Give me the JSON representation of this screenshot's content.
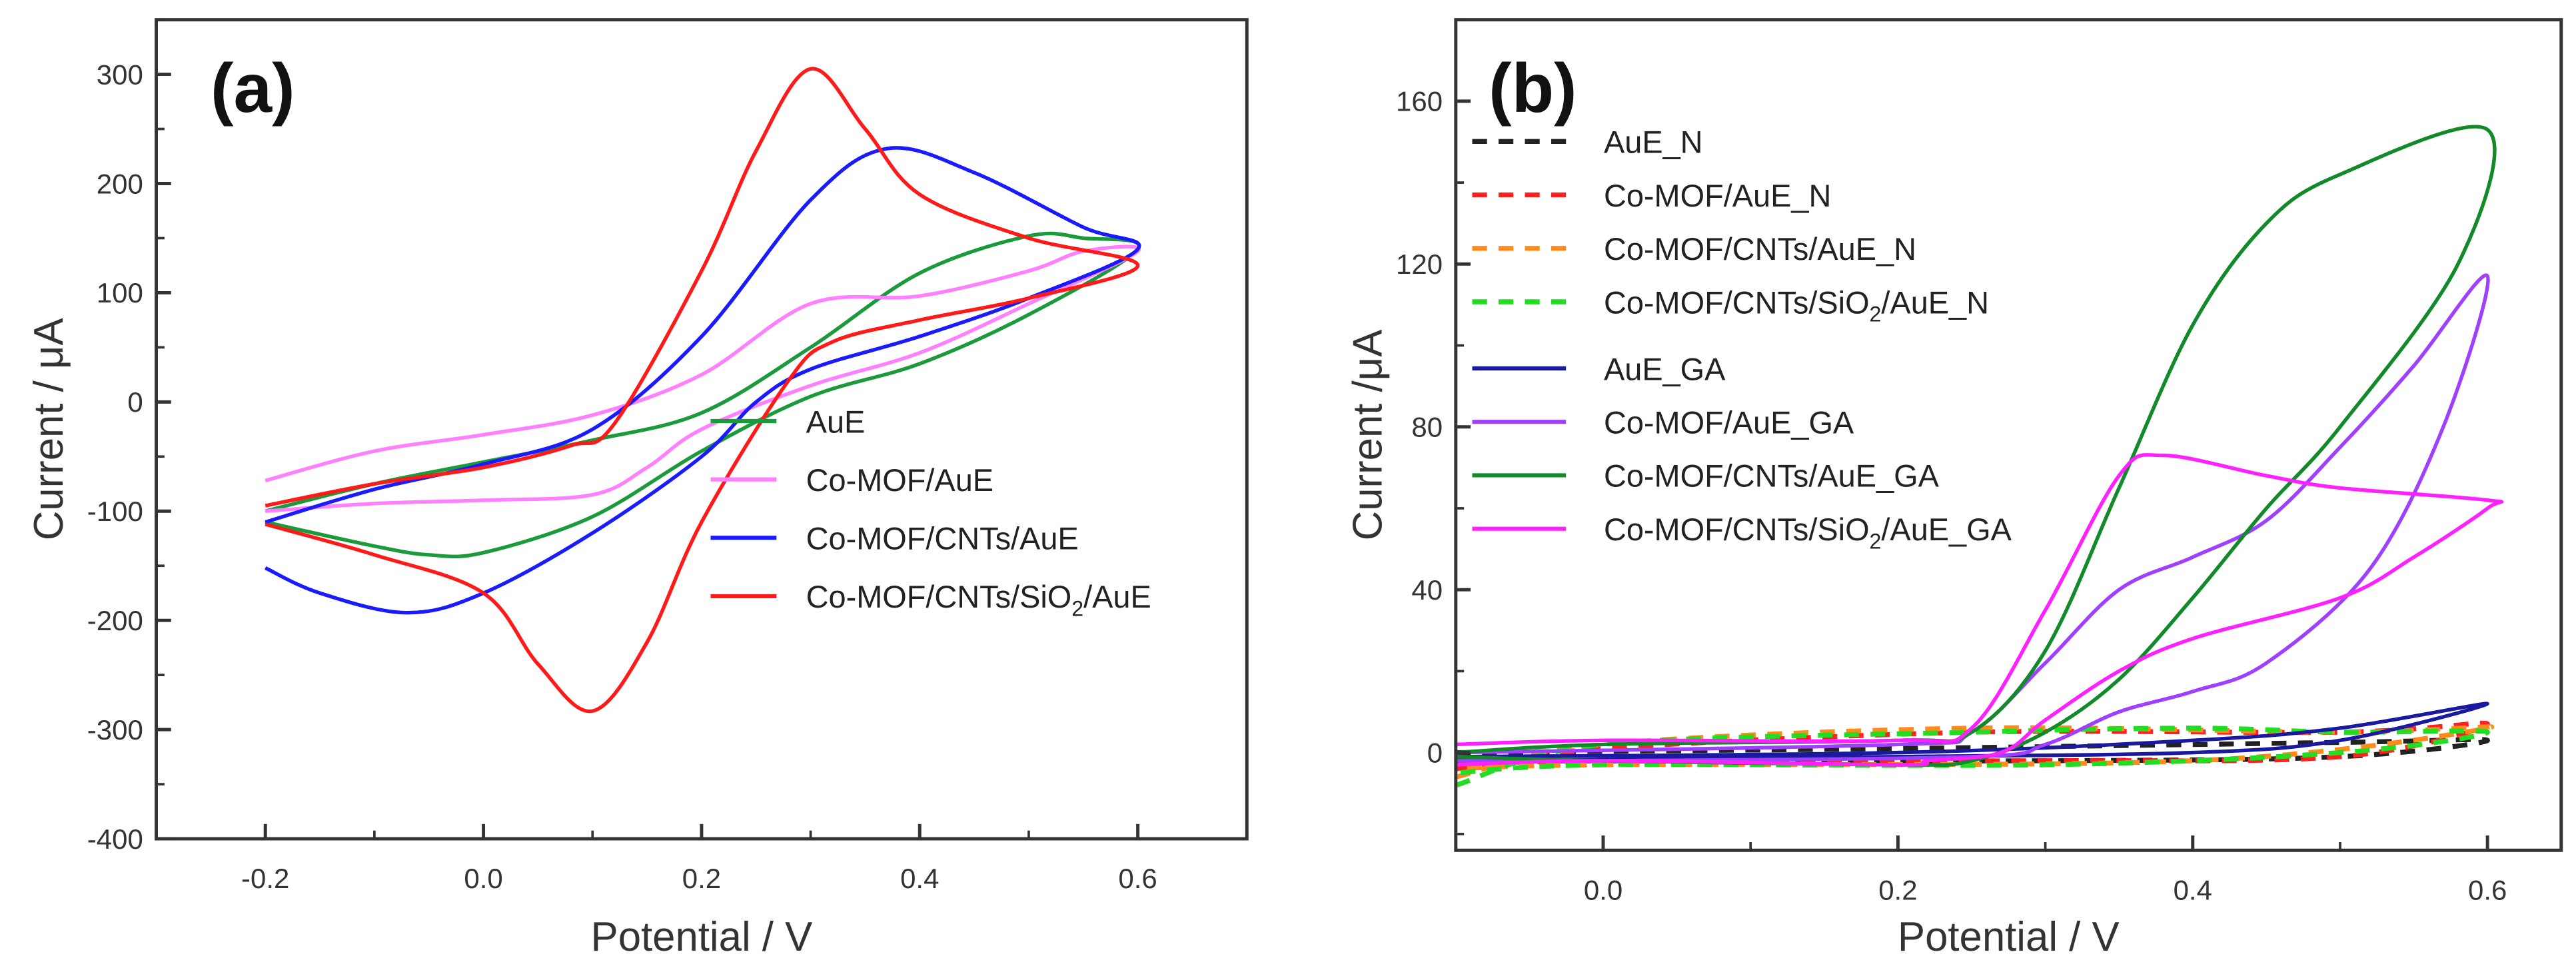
{
  "chart_data": [
    {
      "type": "line",
      "panel_label": "(a)",
      "xlabel": "Potential / V",
      "ylabel": "Current / μA",
      "xlim": [
        -0.3,
        0.7
      ],
      "ylim": [
        -400,
        350
      ],
      "xticks": [
        -0.2,
        0.0,
        0.2,
        0.4,
        0.6
      ],
      "xtick_labels": [
        "-0.2",
        "0.0",
        "0.2",
        "0.4",
        "0.6"
      ],
      "yticks": [
        300,
        200,
        100,
        0,
        -100,
        -200,
        -300,
        -400
      ],
      "ytick_labels": [
        "300",
        "200",
        "100",
        "0",
        "-100",
        "-200",
        "-300",
        "-400"
      ],
      "legend_position": "bottom-right",
      "series": [
        {
          "name": "AuE",
          "sub": "",
          "color": "#1a9a3a",
          "dash": false,
          "points": [
            [
              -0.2,
              -100
            ],
            [
              -0.1,
              -75
            ],
            [
              0,
              -55
            ],
            [
              0.1,
              -35
            ],
            [
              0.2,
              -10
            ],
            [
              0.3,
              50
            ],
            [
              0.4,
              118
            ],
            [
              0.5,
              152
            ],
            [
              0.55,
              150
            ],
            [
              0.6,
              140
            ],
            [
              0.5,
              80
            ],
            [
              0.4,
              35
            ],
            [
              0.3,
              5
            ],
            [
              0.2,
              -45
            ],
            [
              0.1,
              -105
            ],
            [
              0.0,
              -138
            ],
            [
              -0.05,
              -140
            ],
            [
              -0.1,
              -132
            ],
            [
              -0.2,
              -110
            ]
          ]
        },
        {
          "name": "Co-MOF/AuE",
          "sub": "",
          "color": "#ff80ff",
          "dash": false,
          "points": [
            [
              -0.2,
              -72
            ],
            [
              -0.1,
              -45
            ],
            [
              0,
              -30
            ],
            [
              0.1,
              -12
            ],
            [
              0.2,
              25
            ],
            [
              0.3,
              90
            ],
            [
              0.4,
              97
            ],
            [
              0.5,
              120
            ],
            [
              0.55,
              138
            ],
            [
              0.6,
              138
            ],
            [
              0.5,
              90
            ],
            [
              0.4,
              45
            ],
            [
              0.3,
              15
            ],
            [
              0.2,
              -25
            ],
            [
              0.15,
              -60
            ],
            [
              0.1,
              -85
            ],
            [
              0.0,
              -90
            ],
            [
              -0.1,
              -93
            ],
            [
              -0.2,
              -100
            ]
          ]
        },
        {
          "name": "Co-MOF/CNTs/AuE",
          "sub": "",
          "color": "#1a1aff",
          "dash": false,
          "points": [
            [
              -0.2,
              -110
            ],
            [
              -0.1,
              -80
            ],
            [
              0,
              -57
            ],
            [
              0.1,
              -25
            ],
            [
              0.2,
              60
            ],
            [
              0.3,
              185
            ],
            [
              0.37,
              232
            ],
            [
              0.45,
              210
            ],
            [
              0.55,
              160
            ],
            [
              0.6,
              140
            ],
            [
              0.5,
              95
            ],
            [
              0.4,
              60
            ],
            [
              0.3,
              30
            ],
            [
              0.25,
              0
            ],
            [
              0.2,
              -50
            ],
            [
              0.1,
              -120
            ],
            [
              0.0,
              -175
            ],
            [
              -0.07,
              -193
            ],
            [
              -0.15,
              -175
            ],
            [
              -0.2,
              -152
            ]
          ]
        },
        {
          "name": "Co-MOF/CNTs/SiO",
          "sub": "2",
          "suffix": "/AuE",
          "color": "#ff1a1a",
          "dash": false,
          "points": [
            [
              -0.2,
              -95
            ],
            [
              -0.1,
              -75
            ],
            [
              0,
              -60
            ],
            [
              0.08,
              -40
            ],
            [
              0.12,
              -20
            ],
            [
              0.2,
              120
            ],
            [
              0.25,
              230
            ],
            [
              0.3,
              305
            ],
            [
              0.35,
              250
            ],
            [
              0.4,
              190
            ],
            [
              0.5,
              150
            ],
            [
              0.6,
              125
            ],
            [
              0.5,
              95
            ],
            [
              0.4,
              75
            ],
            [
              0.32,
              55
            ],
            [
              0.28,
              20
            ],
            [
              0.2,
              -110
            ],
            [
              0.15,
              -220
            ],
            [
              0.1,
              -283
            ],
            [
              0.05,
              -240
            ],
            [
              0,
              -175
            ],
            [
              -0.1,
              -140
            ],
            [
              -0.2,
              -112
            ]
          ]
        }
      ]
    },
    {
      "type": "line",
      "panel_label": "(b)",
      "xlabel": "Potential / V",
      "ylabel": "Current /μA",
      "xlim": [
        -0.1,
        0.65
      ],
      "ylim": [
        -24,
        180
      ],
      "xticks": [
        0.0,
        0.2,
        0.4,
        0.6
      ],
      "xtick_labels": [
        "0.0",
        "0.2",
        "0.4",
        "0.6"
      ],
      "yticks": [
        160,
        120,
        80,
        40,
        0
      ],
      "ytick_labels": [
        "160",
        "120",
        "80",
        "40",
        "0"
      ],
      "legend_position": "top-left",
      "series": [
        {
          "name": "AuE_N",
          "sub": "",
          "color": "#222222",
          "dash": true,
          "points": [
            [
              -0.1,
              0
            ],
            [
              0.2,
              1
            ],
            [
              0.5,
              2.5
            ],
            [
              0.6,
              3
            ],
            [
              0.5,
              -1
            ],
            [
              0.3,
              -2
            ],
            [
              -0.1,
              -2
            ]
          ]
        },
        {
          "name": "Co-MOF/AuE_N",
          "sub": "",
          "color": "#ff2020",
          "dash": true,
          "points": [
            [
              -0.1,
              -4
            ],
            [
              0,
              1
            ],
            [
              0.25,
              5
            ],
            [
              0.5,
              5
            ],
            [
              0.6,
              7
            ],
            [
              0.5,
              -1
            ],
            [
              0.3,
              -2
            ],
            [
              0,
              -2
            ],
            [
              -0.1,
              -3
            ]
          ]
        },
        {
          "name": "Co-MOF/CNTs/AuE_N",
          "sub": "",
          "color": "#ff8c1a",
          "dash": true,
          "points": [
            [
              -0.1,
              -6
            ],
            [
              0,
              2
            ],
            [
              0.25,
              6
            ],
            [
              0.5,
              5
            ],
            [
              0.6,
              6
            ],
            [
              0.4,
              -2
            ],
            [
              0,
              -3
            ],
            [
              -0.1,
              -4
            ]
          ]
        },
        {
          "name": "Co-MOF/CNTs/SiO",
          "sub": "2",
          "suffix": "/AuE_N",
          "color": "#22dd22",
          "dash": true,
          "points": [
            [
              -0.1,
              -8
            ],
            [
              0,
              2
            ],
            [
              0.25,
              5
            ],
            [
              0.4,
              6
            ],
            [
              0.5,
              5
            ],
            [
              0.6,
              5
            ],
            [
              0.5,
              0
            ],
            [
              0.3,
              -3
            ],
            [
              0,
              -3
            ],
            [
              -0.1,
              -5
            ]
          ]
        },
        {
          "name": "AuE_GA",
          "sub": "",
          "color": "#1a1aa0",
          "dash": false,
          "points": [
            [
              -0.1,
              -1
            ],
            [
              0.2,
              0
            ],
            [
              0.4,
              3
            ],
            [
              0.5,
              6
            ],
            [
              0.6,
              12
            ],
            [
              0.5,
              3
            ],
            [
              0.4,
              0
            ],
            [
              0.2,
              -1
            ],
            [
              -0.1,
              -2
            ]
          ]
        },
        {
          "name": "Co-MOF/AuE_GA",
          "sub": "",
          "color": "#a040ff",
          "dash": false,
          "points": [
            [
              -0.1,
              0
            ],
            [
              0.2,
              2
            ],
            [
              0.25,
              5
            ],
            [
              0.3,
              22
            ],
            [
              0.35,
              40
            ],
            [
              0.4,
              48
            ],
            [
              0.45,
              57
            ],
            [
              0.5,
              75
            ],
            [
              0.55,
              95
            ],
            [
              0.6,
              117
            ],
            [
              0.57,
              80
            ],
            [
              0.52,
              45
            ],
            [
              0.45,
              22
            ],
            [
              0.4,
              15
            ],
            [
              0.35,
              10
            ],
            [
              0.3,
              2
            ],
            [
              0.25,
              -1
            ],
            [
              0.0,
              -2
            ],
            [
              -0.1,
              -2
            ]
          ]
        },
        {
          "name": "Co-MOF/CNTs/AuE_GA",
          "sub": "",
          "color": "#138a2a",
          "dash": false,
          "points": [
            [
              -0.1,
              0
            ],
            [
              0.0,
              2
            ],
            [
              0.2,
              3
            ],
            [
              0.25,
              5
            ],
            [
              0.3,
              25
            ],
            [
              0.35,
              65
            ],
            [
              0.4,
              105
            ],
            [
              0.45,
              130
            ],
            [
              0.5,
              142
            ],
            [
              0.6,
              153
            ],
            [
              0.58,
              120
            ],
            [
              0.5,
              80
            ],
            [
              0.45,
              60
            ],
            [
              0.4,
              38
            ],
            [
              0.35,
              18
            ],
            [
              0.3,
              5
            ],
            [
              0.25,
              -2
            ],
            [
              0.2,
              -3
            ],
            [
              0.0,
              -2
            ],
            [
              -0.1,
              -1
            ]
          ]
        },
        {
          "name": "Co-MOF/CNTs/SiO",
          "sub": "2",
          "suffix": "/AuE_GA",
          "color": "#ff20ff",
          "dash": false,
          "points": [
            [
              -0.1,
              2
            ],
            [
              0.0,
              3
            ],
            [
              0.2,
              3
            ],
            [
              0.25,
              6
            ],
            [
              0.3,
              35
            ],
            [
              0.35,
              68
            ],
            [
              0.38,
              73
            ],
            [
              0.45,
              68
            ],
            [
              0.5,
              65
            ],
            [
              0.6,
              62
            ],
            [
              0.6,
              60
            ],
            [
              0.55,
              48
            ],
            [
              0.5,
              38
            ],
            [
              0.4,
              28
            ],
            [
              0.35,
              20
            ],
            [
              0.3,
              8
            ],
            [
              0.27,
              0
            ],
            [
              0.22,
              -2
            ],
            [
              0.2,
              -3
            ],
            [
              0,
              -2
            ],
            [
              -0.1,
              -3
            ]
          ]
        }
      ]
    }
  ]
}
